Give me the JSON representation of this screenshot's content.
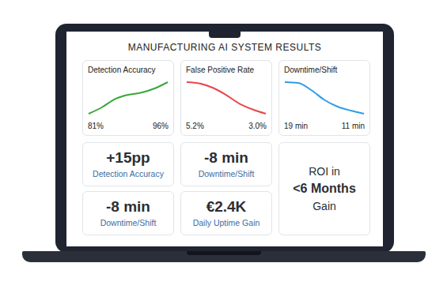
{
  "title": "MANUFACTURING AI SYSTEM RESULTS",
  "chart_data": [
    {
      "type": "line",
      "title": "Detection Accuracy",
      "values": [
        81,
        84,
        88,
        90,
        91,
        93,
        96
      ],
      "value_labels": [
        "81%",
        null,
        null,
        null,
        null,
        null,
        "96%"
      ],
      "color": "#3aa63a",
      "tick_labels": false
    },
    {
      "type": "line",
      "title": "False Positive Rate",
      "values": [
        5.2,
        5.1,
        4.8,
        4.3,
        3.7,
        3.3,
        3.0
      ],
      "value_labels": [
        "5.2%",
        null,
        null,
        null,
        null,
        null,
        "3.0%"
      ],
      "color": "#e8474c",
      "tick_labels": false
    },
    {
      "type": "line",
      "title": "Downtime/Shift",
      "values": [
        19,
        18.8,
        17,
        14.5,
        12.8,
        11.8,
        11
      ],
      "value_labels": [
        "19 min",
        null,
        null,
        null,
        null,
        null,
        "11 min"
      ],
      "color": "#2f9be8",
      "tick_labels": false
    }
  ],
  "cards": [
    {
      "value": "+15pp",
      "label": "Detection Accuracy"
    },
    {
      "value": "-8 min",
      "label": "Downtime/Shift"
    },
    {
      "value": "-8 min",
      "label": "Downtime/Shift"
    },
    {
      "value": "€2.4K",
      "label": "Daily Uptime Gain"
    }
  ],
  "roi": {
    "lines": [
      "ROI in",
      "<6 Months",
      "Gain"
    ]
  }
}
